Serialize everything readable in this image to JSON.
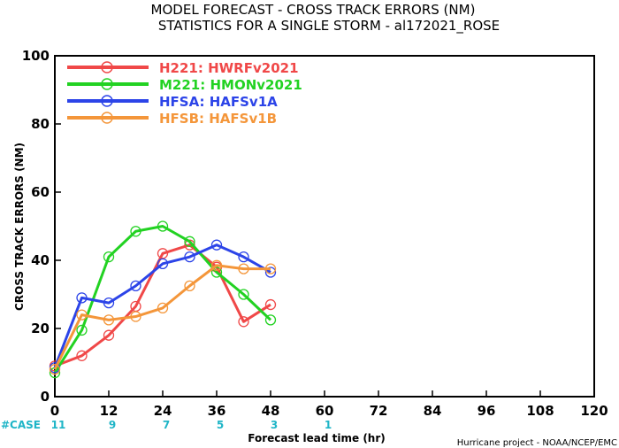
{
  "chart_data": {
    "type": "line",
    "title": "MODEL FORECAST - CROSS TRACK ERRORS (NM)",
    "subtitle": "STATISTICS FOR A SINGLE STORM - al172021_ROSE",
    "xlabel": "Forecast lead time (hr)",
    "ylabel": "CROSS TRACK ERRORS (NM)",
    "xlim": [
      0,
      120
    ],
    "ylim": [
      0,
      100
    ],
    "x_ticks": [
      0,
      12,
      24,
      36,
      48,
      60,
      72,
      84,
      96,
      108,
      120
    ],
    "y_ticks": [
      0,
      20,
      40,
      60,
      80,
      100
    ],
    "grid": false,
    "legend_position": "top-left",
    "series": [
      {
        "name": "H221:  HWRFv2021",
        "color": "#f04848",
        "x": [
          0,
          6,
          12,
          18,
          24,
          30,
          36,
          42,
          48
        ],
        "y": [
          9,
          12,
          18,
          26.5,
          42,
          44.5,
          38,
          22,
          27
        ]
      },
      {
        "name": "M221:  HMONv2021",
        "color": "#22d222",
        "x": [
          0,
          6,
          12,
          18,
          24,
          30,
          36,
          42,
          48
        ],
        "y": [
          7,
          19.5,
          41,
          48.5,
          50,
          45.5,
          36.5,
          30,
          22.5
        ]
      },
      {
        "name": "HFSA:  HAFSv1A",
        "color": "#2c44e8",
        "x": [
          0,
          6,
          12,
          18,
          24,
          30,
          36,
          42,
          48
        ],
        "y": [
          8.5,
          29,
          27.5,
          32.5,
          39,
          41,
          44.5,
          41,
          36.5
        ]
      },
      {
        "name": "HFSB:  HAFSv1B",
        "color": "#f4963a",
        "x": [
          0,
          6,
          12,
          18,
          24,
          30,
          36,
          42,
          48
        ],
        "y": [
          8,
          24,
          22.5,
          23.5,
          26,
          32.5,
          38.5,
          37.5,
          37.5
        ]
      }
    ],
    "case_counts": {
      "label": "#CASE",
      "x": [
        0,
        12,
        24,
        36,
        48,
        60
      ],
      "values": [
        "11",
        "9",
        "7",
        "5",
        "3",
        "1"
      ]
    },
    "credit": "Hurricane project - NOAA/NCEP/EMC"
  }
}
